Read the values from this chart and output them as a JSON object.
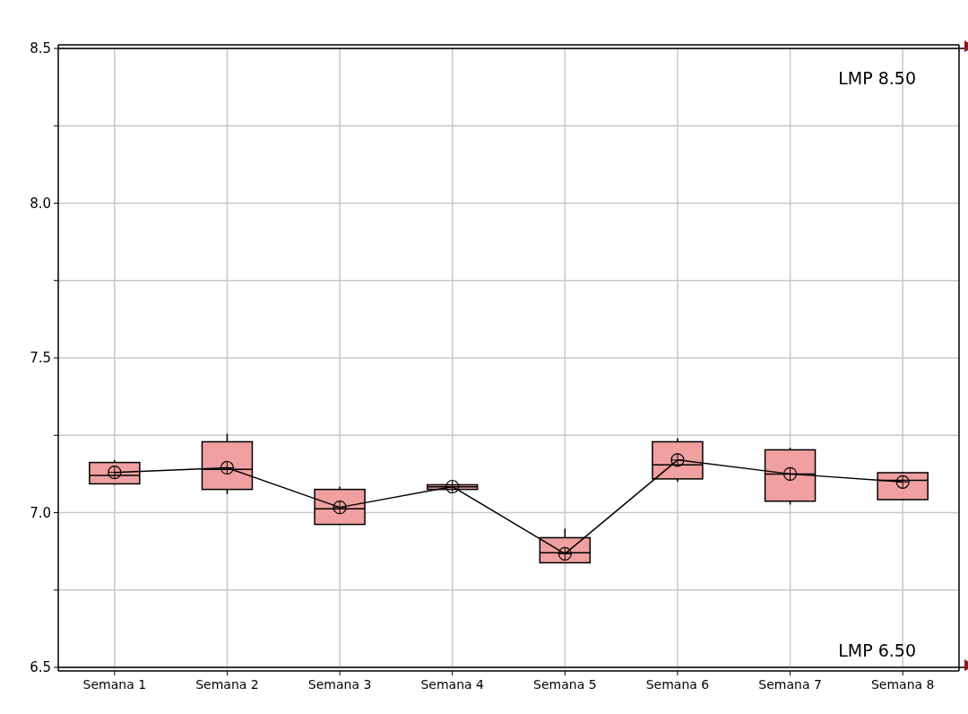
{
  "chart_data": {
    "type": "box",
    "categories": [
      "Semana 1",
      "Semana 2",
      "Semana 3",
      "Semana 4",
      "Semana 5",
      "Semana 6",
      "Semana 7",
      "Semana 8"
    ],
    "series": [
      {
        "type": "box",
        "color": "#f0a0a0",
        "boxes": [
          {
            "low": 7.09,
            "q1": 7.093,
            "median": 7.12,
            "q3": 7.162,
            "high": 7.17,
            "mean": 7.13
          },
          {
            "low": 7.06,
            "q1": 7.075,
            "median": 7.14,
            "q3": 7.229,
            "high": 7.255,
            "mean": 7.145
          },
          {
            "low": 6.96,
            "q1": 6.962,
            "median": 7.012,
            "q3": 7.075,
            "high": 7.084,
            "mean": 7.017
          },
          {
            "low": 7.075,
            "q1": 7.075,
            "median": 7.083,
            "q3": 7.09,
            "high": 7.09,
            "mean": 7.084
          },
          {
            "low": 6.838,
            "q1": 6.838,
            "median": 6.87,
            "q3": 6.919,
            "high": 6.948,
            "mean": 6.867
          },
          {
            "low": 7.1,
            "q1": 7.109,
            "median": 7.154,
            "q3": 7.229,
            "high": 7.24,
            "mean": 7.17
          },
          {
            "low": 7.026,
            "q1": 7.037,
            "median": 7.125,
            "q3": 7.203,
            "high": 7.21,
            "mean": 7.125
          },
          {
            "low": 7.04,
            "q1": 7.042,
            "median": 7.104,
            "q3": 7.129,
            "high": 7.132,
            "mean": 7.099
          }
        ]
      },
      {
        "type": "line",
        "color": "#000000",
        "values": [
          7.13,
          7.145,
          7.017,
          7.084,
          6.867,
          7.17,
          7.125,
          7.099
        ]
      }
    ],
    "ylim": [
      6.5,
      8.5
    ],
    "yticks": [
      {
        "value": 6.5,
        "label": "6.5"
      },
      {
        "value": 6.75,
        "label": null
      },
      {
        "value": 7,
        "label": "7.0"
      },
      {
        "value": 7.25,
        "label": null
      },
      {
        "value": 7.5,
        "label": "7.5"
      },
      {
        "value": 7.75,
        "label": null
      },
      {
        "value": 8,
        "label": "8.0"
      },
      {
        "value": 8.25,
        "label": null
      },
      {
        "value": 8.5,
        "label": "8.5"
      }
    ],
    "grid": true,
    "marker": "none",
    "ref_lines": [
      {
        "axis": "y",
        "value": 8.5,
        "label": "LMP 8.50",
        "color": "#000000"
      },
      {
        "axis": "y",
        "value": 6.5,
        "label": "LMP 6.50",
        "color": "#000000"
      }
    ]
  }
}
